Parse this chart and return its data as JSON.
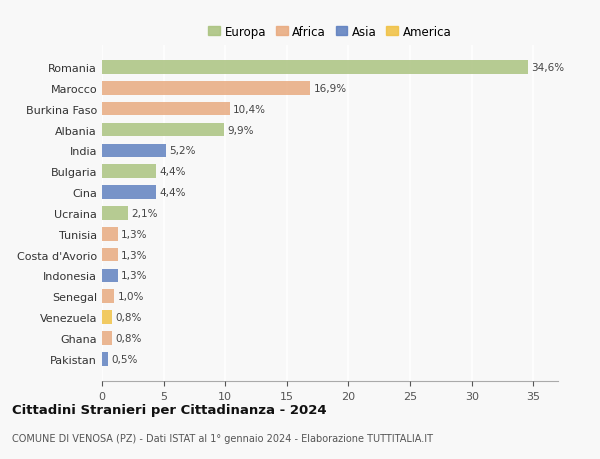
{
  "countries": [
    "Romania",
    "Marocco",
    "Burkina Faso",
    "Albania",
    "India",
    "Bulgaria",
    "Cina",
    "Ucraina",
    "Tunisia",
    "Costa d'Avorio",
    "Indonesia",
    "Senegal",
    "Venezuela",
    "Ghana",
    "Pakistan"
  ],
  "values": [
    34.6,
    16.9,
    10.4,
    9.9,
    5.2,
    4.4,
    4.4,
    2.1,
    1.3,
    1.3,
    1.3,
    1.0,
    0.8,
    0.8,
    0.5
  ],
  "labels": [
    "34,6%",
    "16,9%",
    "10,4%",
    "9,9%",
    "5,2%",
    "4,4%",
    "4,4%",
    "2,1%",
    "1,3%",
    "1,3%",
    "1,3%",
    "1,0%",
    "0,8%",
    "0,8%",
    "0,5%"
  ],
  "continents": [
    "Europa",
    "Africa",
    "Africa",
    "Europa",
    "Asia",
    "Europa",
    "Asia",
    "Europa",
    "Africa",
    "Africa",
    "Asia",
    "Africa",
    "America",
    "Africa",
    "Asia"
  ],
  "colors": {
    "Europa": "#a8c17c",
    "Africa": "#e8a87c",
    "Asia": "#5b7dbe",
    "America": "#f0c040"
  },
  "xlim": [
    0,
    37
  ],
  "xticks": [
    0,
    5,
    10,
    15,
    20,
    25,
    30,
    35
  ],
  "title": "Cittadini Stranieri per Cittadinanza - 2024",
  "subtitle": "COMUNE DI VENOSA (PZ) - Dati ISTAT al 1° gennaio 2024 - Elaborazione TUTTITALIA.IT",
  "background_color": "#f8f8f8",
  "grid_color": "#ffffff",
  "legend_order": [
    "Europa",
    "Africa",
    "Asia",
    "America"
  ]
}
